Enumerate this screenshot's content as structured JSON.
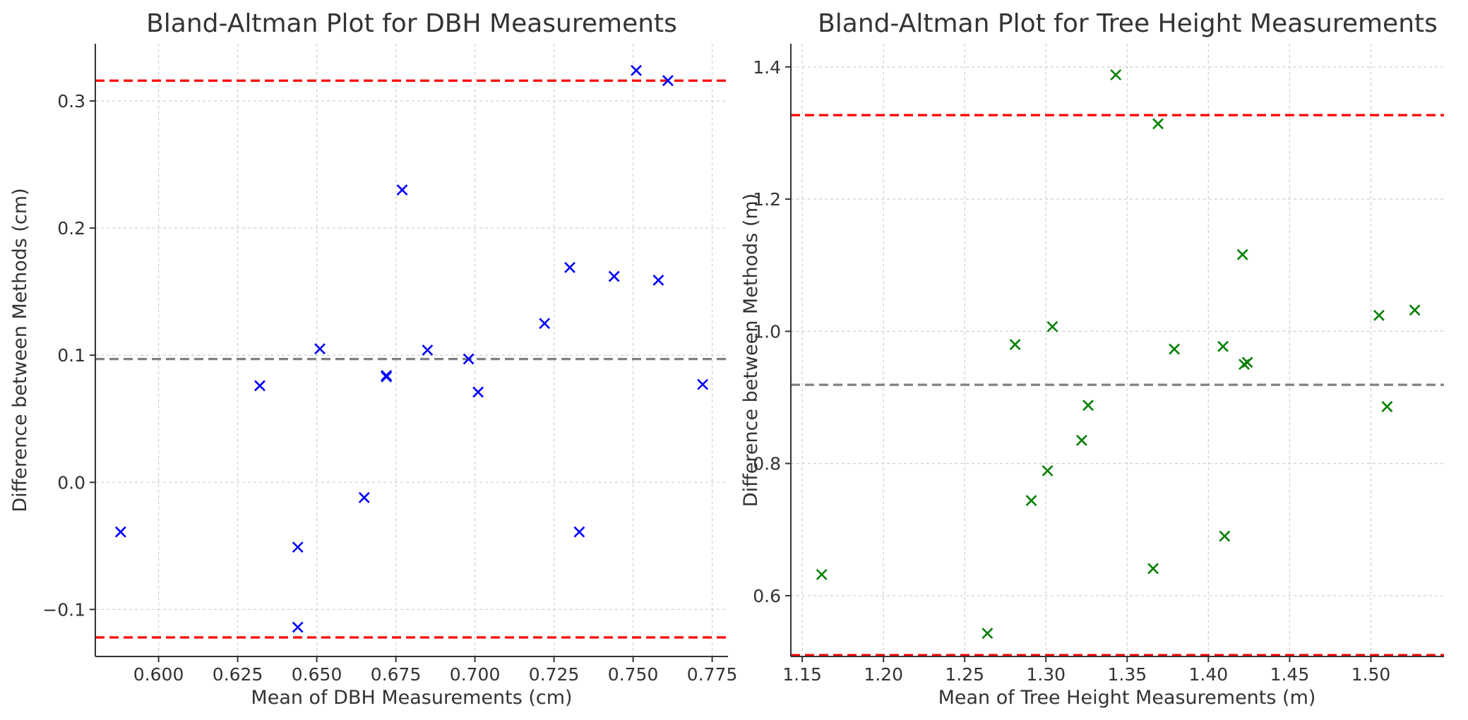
{
  "chart_data": [
    {
      "type": "scatter",
      "title": "Bland-Altman Plot for DBH Measurements",
      "xlabel": "Mean of DBH Measurements (cm)",
      "ylabel": "Difference between Methods (cm)",
      "xlim": [
        0.58,
        0.78
      ],
      "ylim": [
        -0.137,
        0.345
      ],
      "xticks": [
        0.6,
        0.625,
        0.65,
        0.675,
        0.7,
        0.725,
        0.75,
        0.775
      ],
      "xtick_labels": [
        "0.600",
        "0.625",
        "0.650",
        "0.675",
        "0.700",
        "0.725",
        "0.750",
        "0.775"
      ],
      "yticks": [
        -0.1,
        0.0,
        0.1,
        0.2,
        0.3
      ],
      "ytick_labels": [
        "−0.1",
        "0.0",
        "0.1",
        "0.2",
        "0.3"
      ],
      "grid": true,
      "marker": "x",
      "color": "#0000ff",
      "points": [
        {
          "x": 0.588,
          "y": -0.039
        },
        {
          "x": 0.632,
          "y": 0.076
        },
        {
          "x": 0.644,
          "y": -0.051
        },
        {
          "x": 0.644,
          "y": -0.114
        },
        {
          "x": 0.651,
          "y": 0.105
        },
        {
          "x": 0.665,
          "y": -0.012
        },
        {
          "x": 0.672,
          "y": 0.083
        },
        {
          "x": 0.672,
          "y": 0.084
        },
        {
          "x": 0.677,
          "y": 0.23
        },
        {
          "x": 0.685,
          "y": 0.104
        },
        {
          "x": 0.698,
          "y": 0.097
        },
        {
          "x": 0.701,
          "y": 0.071
        },
        {
          "x": 0.722,
          "y": 0.125
        },
        {
          "x": 0.73,
          "y": 0.169
        },
        {
          "x": 0.733,
          "y": -0.039
        },
        {
          "x": 0.744,
          "y": 0.162
        },
        {
          "x": 0.751,
          "y": 0.324
        },
        {
          "x": 0.758,
          "y": 0.159
        },
        {
          "x": 0.761,
          "y": 0.316
        },
        {
          "x": 0.772,
          "y": 0.077
        }
      ],
      "reference_lines": [
        {
          "name": "mean difference",
          "y": 0.097,
          "color": "#808080"
        },
        {
          "name": "upper limit of agreement",
          "y": 0.316,
          "color": "#ff0000"
        },
        {
          "name": "lower limit of agreement",
          "y": -0.122,
          "color": "#ff0000"
        }
      ]
    },
    {
      "type": "scatter",
      "title": "Bland-Altman Plot for Tree Height Measurements",
      "xlabel": "Mean of Tree Height Measurements (m)",
      "ylabel": "Difference between Methods (m)",
      "xlim": [
        1.143,
        1.545
      ],
      "ylim": [
        0.508,
        1.435
      ],
      "xticks": [
        1.15,
        1.2,
        1.25,
        1.3,
        1.35,
        1.4,
        1.45,
        1.5
      ],
      "xtick_labels": [
        "1.15",
        "1.20",
        "1.25",
        "1.30",
        "1.35",
        "1.40",
        "1.45",
        "1.50"
      ],
      "yticks": [
        0.6,
        0.8,
        1.0,
        1.2,
        1.4
      ],
      "ytick_labels": [
        "0.6",
        "0.8",
        "1.0",
        "1.2",
        "1.4"
      ],
      "grid": true,
      "marker": "x",
      "color": "#008000",
      "points": [
        {
          "x": 1.162,
          "y": 0.632
        },
        {
          "x": 1.264,
          "y": 0.543
        },
        {
          "x": 1.281,
          "y": 0.98
        },
        {
          "x": 1.291,
          "y": 0.744
        },
        {
          "x": 1.301,
          "y": 0.789
        },
        {
          "x": 1.304,
          "y": 1.007
        },
        {
          "x": 1.322,
          "y": 0.835
        },
        {
          "x": 1.326,
          "y": 0.888
        },
        {
          "x": 1.343,
          "y": 1.388
        },
        {
          "x": 1.366,
          "y": 0.641
        },
        {
          "x": 1.369,
          "y": 1.314
        },
        {
          "x": 1.379,
          "y": 0.973
        },
        {
          "x": 1.409,
          "y": 0.977
        },
        {
          "x": 1.41,
          "y": 0.69
        },
        {
          "x": 1.421,
          "y": 1.116
        },
        {
          "x": 1.422,
          "y": 0.95
        },
        {
          "x": 1.424,
          "y": 0.953
        },
        {
          "x": 1.505,
          "y": 1.024
        },
        {
          "x": 1.51,
          "y": 0.886
        },
        {
          "x": 1.527,
          "y": 1.032
        }
      ],
      "reference_lines": [
        {
          "name": "mean difference",
          "y": 0.919,
          "color": "#808080"
        },
        {
          "name": "upper limit of agreement",
          "y": 1.327,
          "color": "#ff0000"
        },
        {
          "name": "lower limit of agreement",
          "y": 0.51,
          "color": "#ff0000"
        }
      ]
    }
  ]
}
